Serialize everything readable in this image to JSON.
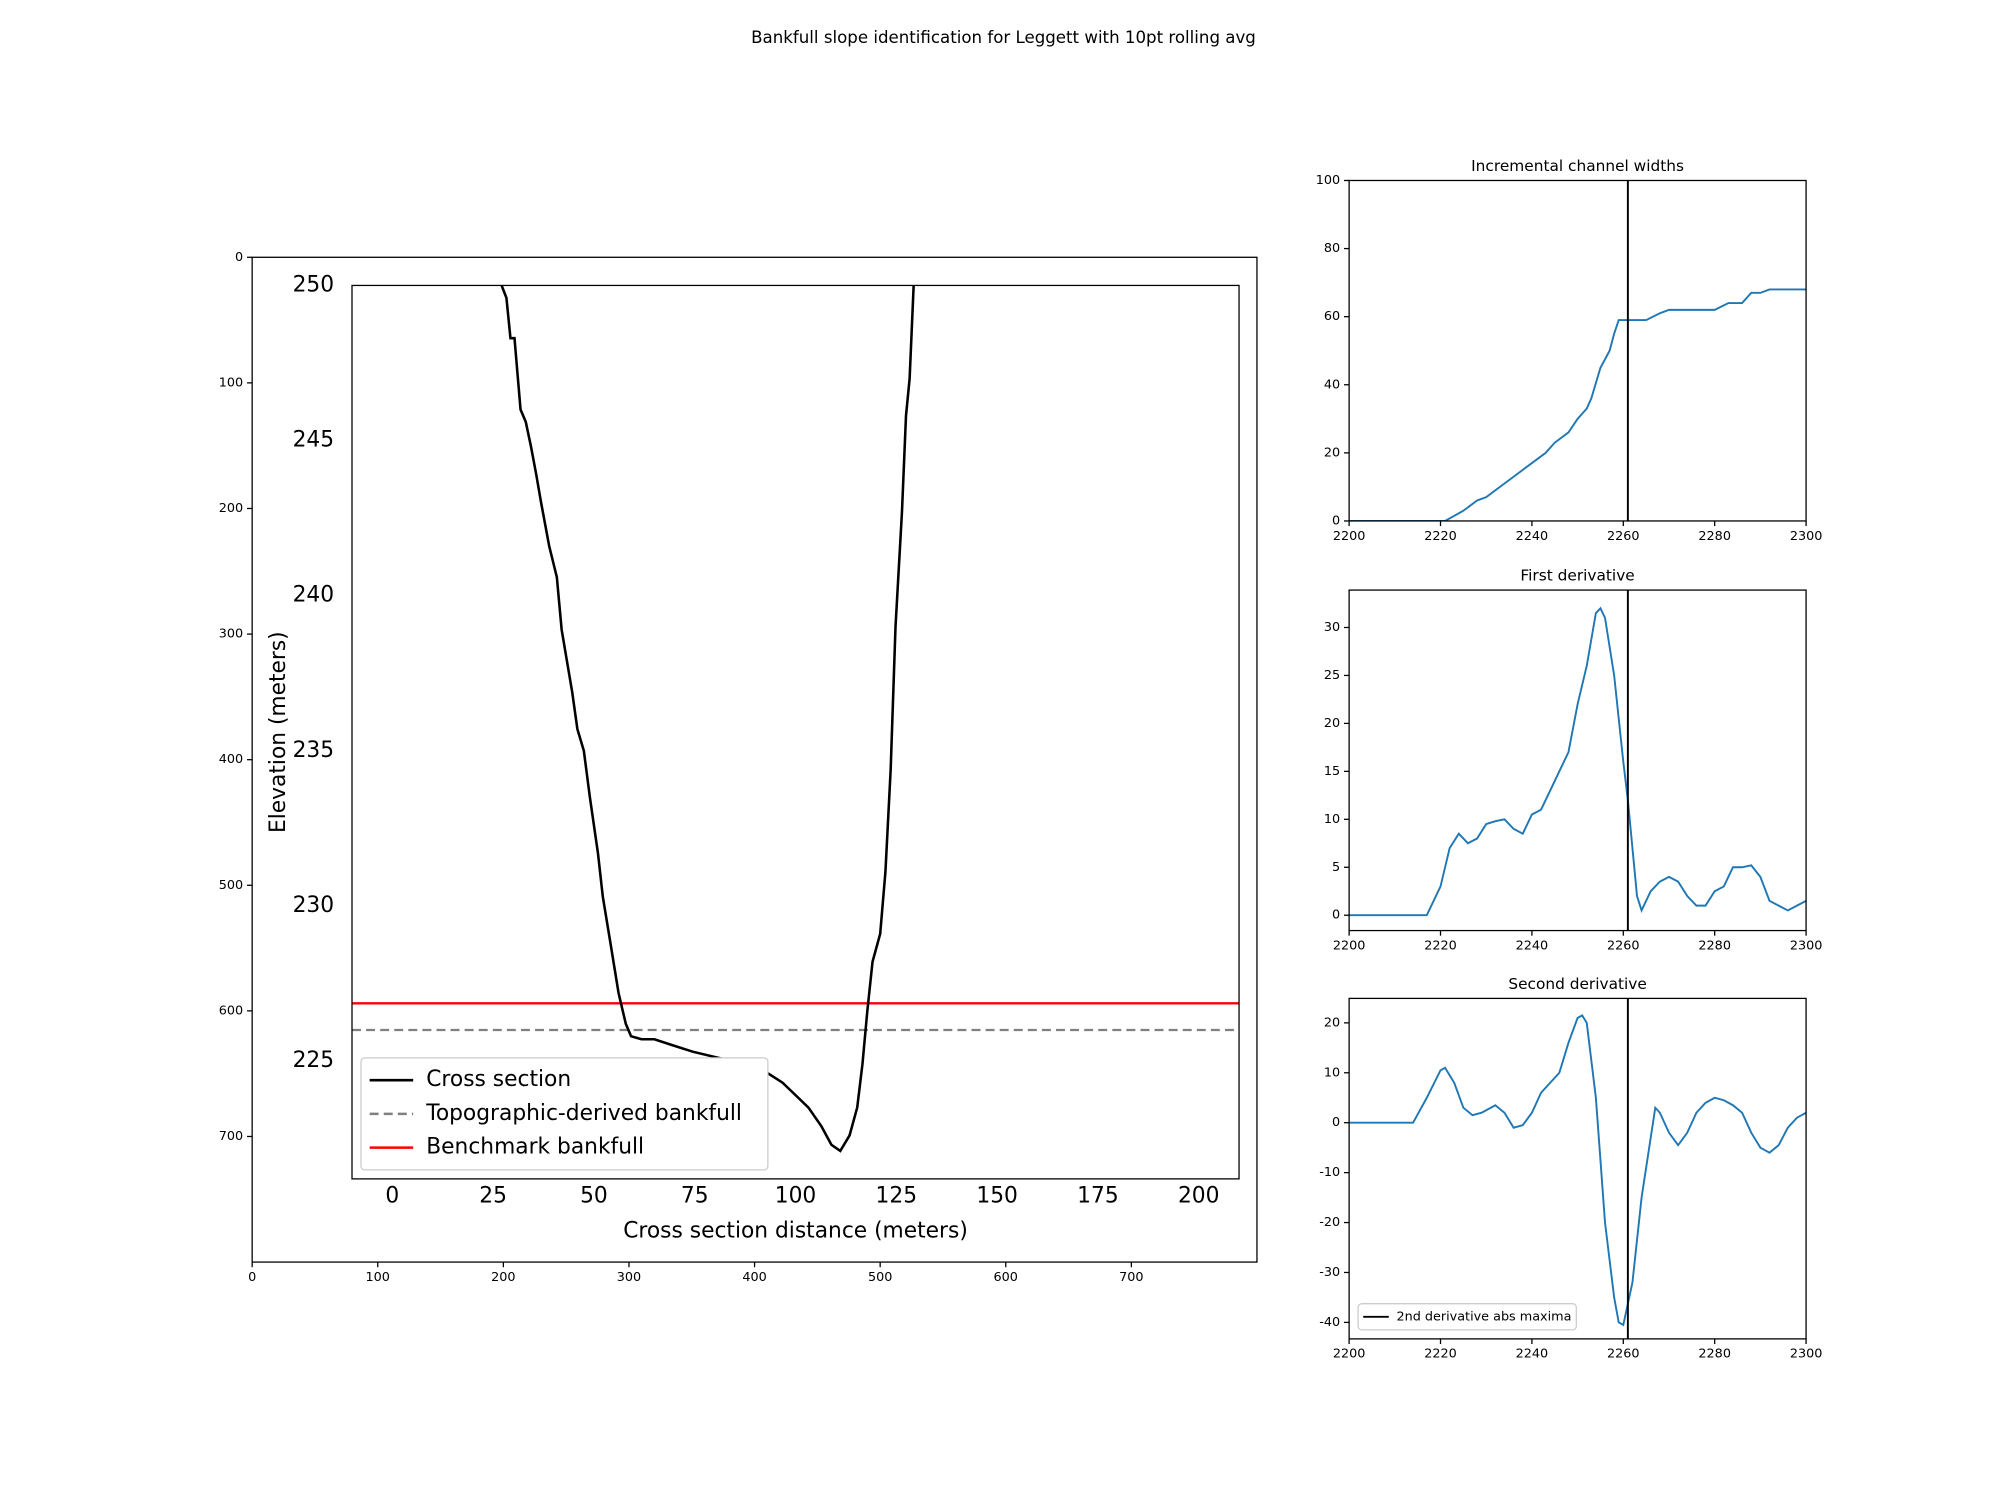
{
  "title": "Bankfull slope identification for Leggett with 10pt rolling avg",
  "chart_data": [
    {
      "type": "frame",
      "xlim": [
        0,
        800
      ],
      "ylim": [
        800,
        0
      ],
      "xticks": [
        0,
        100,
        200,
        300,
        400,
        500,
        600,
        700
      ],
      "yticks": [
        0,
        100,
        200,
        300,
        400,
        500,
        600,
        700
      ]
    },
    {
      "type": "line",
      "xlabel": "Cross section distance (meters)",
      "ylabel": "Elevation (meters)",
      "xlim": [
        -10,
        210
      ],
      "ylim": [
        221.2,
        250
      ],
      "xticks": [
        0,
        25,
        50,
        75,
        100,
        125,
        150,
        175,
        200
      ],
      "yticks": [
        225,
        230,
        235,
        240,
        245,
        250
      ],
      "legend": "lower left",
      "x": [
        27.1,
        28.3,
        29.3,
        30.3,
        31.8,
        33.1,
        34.4,
        35.7,
        36.9,
        38.9,
        40.8,
        42.0,
        43.3,
        44.6,
        45.9,
        47.5,
        49.0,
        51.0,
        52.2,
        54.1,
        56.1,
        57.9,
        59.2,
        61.8,
        65.0,
        69.7,
        74.5,
        80.9,
        87.3,
        92.0,
        96.8,
        100.0,
        103.2,
        106.4,
        108.9,
        111.1,
        113.4,
        115.3,
        116.6,
        117.8,
        119.1,
        121.0,
        122.3,
        123.6,
        124.8,
        126.4,
        127.4,
        128.3,
        129.3
      ],
      "series": [
        {
          "name": "Cross section",
          "color": "#000000",
          "values": [
            250.0,
            249.6,
            248.3,
            248.3,
            246.0,
            245.6,
            244.8,
            243.9,
            243.0,
            241.6,
            240.6,
            238.9,
            237.9,
            236.9,
            235.7,
            235.0,
            233.5,
            231.7,
            230.3,
            228.8,
            227.2,
            226.2,
            225.8,
            225.7,
            225.7,
            225.5,
            225.3,
            225.1,
            224.9,
            224.7,
            224.3,
            223.9,
            223.5,
            222.9,
            222.3,
            222.1,
            222.6,
            223.5,
            224.9,
            226.6,
            228.2,
            229.1,
            231.1,
            234.4,
            239.0,
            242.7,
            245.8,
            247.0,
            250.0
          ]
        }
      ],
      "hlines": [
        {
          "name": "Topographic-derived bankfull",
          "color": "#808080",
          "style": "dashed",
          "value": 226.0
        },
        {
          "name": "Benchmark bankfull",
          "color": "#ff0000",
          "style": "solid",
          "value": 226.86
        }
      ]
    },
    {
      "type": "line",
      "title": "Incremental channel widths",
      "xlim": [
        2200,
        2300
      ],
      "ylim": [
        0,
        100
      ],
      "xticks": [
        2200,
        2220,
        2240,
        2260,
        2280,
        2300
      ],
      "yticks": [
        0,
        20,
        40,
        60,
        80,
        100
      ],
      "x": [
        2200,
        2221,
        2225,
        2228,
        2230,
        2233,
        2235,
        2238,
        2240,
        2243,
        2245,
        2248,
        2250,
        2252,
        2253,
        2255,
        2257,
        2258,
        2259,
        2260,
        2265,
        2268,
        2270,
        2280,
        2283,
        2286,
        2288,
        2290,
        2292,
        2300
      ],
      "series": [
        {
          "color": "#1f77b4",
          "values": [
            0,
            0,
            3,
            6,
            7,
            10,
            12,
            15,
            17,
            20,
            23,
            26,
            30,
            33,
            36,
            45,
            50,
            55,
            59,
            59,
            59,
            61,
            62,
            62,
            64,
            64,
            67,
            67,
            68,
            68
          ]
        }
      ],
      "vline": {
        "x": 2261,
        "color": "#000000"
      }
    },
    {
      "type": "line",
      "title": "First derivative",
      "xlim": [
        2200,
        2300
      ],
      "ylim": [
        -1.6,
        33.9
      ],
      "xticks": [
        2200,
        2220,
        2240,
        2260,
        2280,
        2300
      ],
      "yticks": [
        0,
        5,
        10,
        15,
        20,
        25,
        30
      ],
      "x": [
        2200,
        2217,
        2220,
        2222,
        2224,
        2226,
        2228,
        2230,
        2232,
        2234,
        2236,
        2238,
        2240,
        2242,
        2244,
        2246,
        2248,
        2250,
        2252,
        2254,
        2255,
        2256,
        2258,
        2260,
        2261,
        2262,
        2263,
        2264,
        2266,
        2268,
        2270,
        2272,
        2274,
        2276,
        2278,
        2280,
        2282,
        2284,
        2286,
        2288,
        2290,
        2292,
        2294,
        2296,
        2298,
        2300
      ],
      "series": [
        {
          "color": "#1f77b4",
          "values": [
            0,
            0,
            3,
            7,
            8.5,
            7.5,
            8,
            9.5,
            9.8,
            10,
            9,
            8.5,
            10.5,
            11,
            13,
            15,
            17,
            22,
            26,
            31.5,
            32,
            31,
            25,
            16,
            12,
            7,
            2,
            0.5,
            2.5,
            3.5,
            4,
            3.5,
            2,
            1,
            1,
            2.5,
            3,
            5,
            5,
            5.2,
            4,
            1.5,
            1,
            0.5,
            1,
            1.5
          ]
        }
      ],
      "vline": {
        "x": 2261,
        "color": "#000000"
      }
    },
    {
      "type": "line",
      "title": "Second derivative",
      "xlim": [
        2200,
        2300
      ],
      "ylim": [
        -43.3,
        24.9
      ],
      "xticks": [
        2200,
        2220,
        2240,
        2260,
        2280,
        2300
      ],
      "yticks": [
        -40,
        -30,
        -20,
        -10,
        0,
        10,
        20
      ],
      "legend": "lower left",
      "x": [
        2200,
        2214,
        2217,
        2220,
        2221,
        2223,
        2225,
        2227,
        2229,
        2232,
        2234,
        2236,
        2238,
        2240,
        2242,
        2244,
        2246,
        2248,
        2250,
        2251,
        2252,
        2254,
        2256,
        2258,
        2259,
        2260,
        2262,
        2264,
        2266,
        2267,
        2268,
        2270,
        2272,
        2274,
        2276,
        2278,
        2280,
        2282,
        2284,
        2286,
        2288,
        2290,
        2292,
        2294,
        2296,
        2298,
        2300
      ],
      "series": [
        {
          "color": "#1f77b4",
          "values": [
            0,
            0,
            5,
            10.5,
            11,
            8,
            3,
            1.5,
            2,
            3.5,
            2,
            -1,
            -0.5,
            2,
            6,
            8,
            10,
            16,
            21,
            21.5,
            20,
            5,
            -20,
            -35,
            -40,
            -40.5,
            -32,
            -15,
            -3,
            3,
            2,
            -2,
            -4.5,
            -2,
            2,
            4,
            5,
            4.5,
            3.5,
            2,
            -2,
            -5,
            -6,
            -4.5,
            -1,
            1,
            2
          ]
        }
      ],
      "vline": {
        "name": "2nd derivative abs maxima",
        "x": 2261,
        "color": "#000000"
      }
    }
  ]
}
